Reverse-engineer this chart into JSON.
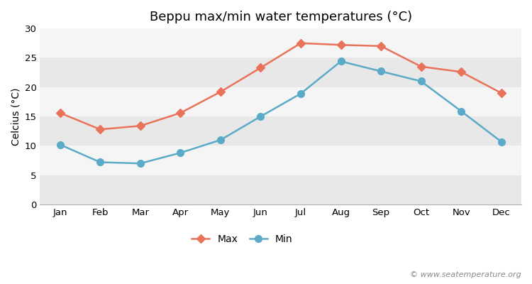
{
  "title": "Beppu max/min water temperatures (°C)",
  "ylabel": "Celcius (°C)",
  "months": [
    "Jan",
    "Feb",
    "Mar",
    "Apr",
    "May",
    "Jun",
    "Jul",
    "Aug",
    "Sep",
    "Oct",
    "Nov",
    "Dec"
  ],
  "max_values": [
    15.6,
    12.8,
    13.4,
    15.6,
    19.2,
    23.3,
    27.5,
    27.2,
    27.0,
    23.5,
    22.6,
    19.0
  ],
  "min_values": [
    10.2,
    7.2,
    7.0,
    8.8,
    11.0,
    15.0,
    18.9,
    24.4,
    22.7,
    21.0,
    15.9,
    10.7
  ],
  "max_color": "#e8735a",
  "min_color": "#5aaac8",
  "bg_color": "#ffffff",
  "band_colors": [
    "#e8e8e8",
    "#f5f5f5"
  ],
  "ylim": [
    0,
    30
  ],
  "yticks": [
    0,
    5,
    10,
    15,
    20,
    25,
    30
  ],
  "max_marker": "D",
  "min_marker": "o",
  "max_marker_size": 6,
  "min_marker_size": 7,
  "line_width": 1.8,
  "legend_labels": [
    "Max",
    "Min"
  ],
  "watermark": "© www.seatemperature.org",
  "title_fontsize": 13,
  "label_fontsize": 10,
  "tick_fontsize": 9.5,
  "watermark_fontsize": 8
}
